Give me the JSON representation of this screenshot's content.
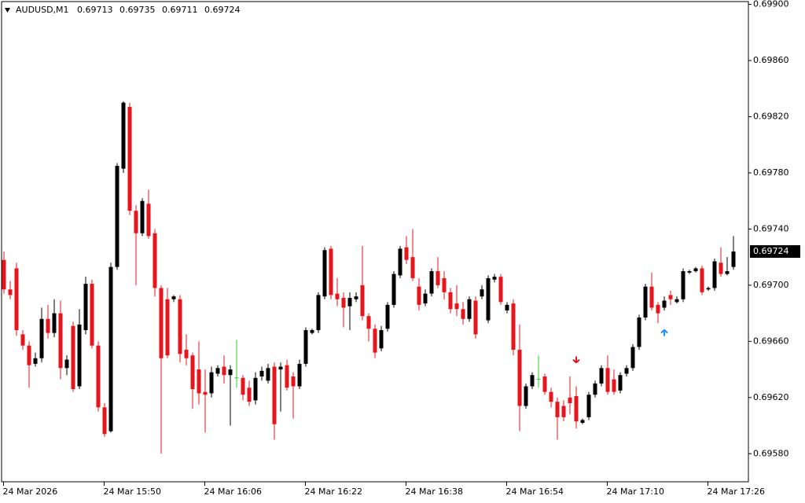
{
  "chart_data": {
    "type": "candlestick",
    "title": "AUDUSD,M1",
    "categories": [
      "24 Mar 2026",
      null,
      null,
      null,
      null,
      null,
      null,
      null,
      null,
      null,
      null,
      null,
      null,
      null,
      null,
      null,
      "24 Mar 15:50",
      null,
      null,
      null,
      null,
      null,
      null,
      null,
      null,
      null,
      null,
      null,
      null,
      null,
      null,
      null,
      "24 Mar 16:06",
      null,
      null,
      null,
      null,
      null,
      null,
      null,
      null,
      null,
      null,
      null,
      null,
      null,
      null,
      null,
      "24 Mar 16:22",
      null,
      null,
      null,
      null,
      null,
      null,
      null,
      null,
      null,
      null,
      null,
      null,
      null,
      null,
      null,
      "24 Mar 16:38",
      null,
      null,
      null,
      null,
      null,
      null,
      null,
      null,
      null,
      null,
      null,
      null,
      null,
      null,
      null,
      "24 Mar 16:54",
      null,
      null,
      null,
      null,
      null,
      null,
      null,
      null,
      null,
      null,
      null,
      null,
      null,
      null,
      null,
      "24 Mar 17:10",
      null,
      null,
      null,
      null,
      null,
      null,
      null,
      null,
      null,
      null,
      null,
      null,
      null,
      null,
      null,
      "24 Mar 17:26",
      null,
      null,
      null,
      null
    ],
    "open": [
      0.69718,
      0.69697,
      0.69712,
      0.69665,
      0.69657,
      0.69644,
      0.69648,
      0.69676,
      0.69666,
      0.6968,
      0.69641,
      0.69671,
      0.69628,
      0.69668,
      0.69701,
      0.69657,
      0.69613,
      0.69596,
      0.69713,
      0.69783,
      0.69827,
      0.69753,
      0.69737,
      0.69758,
      0.69737,
      0.69698,
      0.6969,
      0.6969,
      0.6969,
      0.69654,
      0.6965,
      0.6964,
      0.69624,
      0.69623,
      0.69637,
      0.69642,
      0.69636,
      0.69634,
      0.69634,
      0.69627,
      0.69618,
      0.69635,
      0.69632,
      0.69642,
      0.6964,
      0.69643,
      0.69635,
      0.69628,
      0.69644,
      0.69666,
      0.69668,
      0.69692,
      0.69726,
      0.69694,
      0.69691,
      0.69685,
      0.6969,
      0.697,
      0.69678,
      0.69669,
      0.69655,
      0.69669,
      0.69686,
      0.69707,
      0.69727,
      0.6972,
      0.69699,
      0.69687,
      0.69694,
      0.6971,
      0.69705,
      0.69695,
      0.69687,
      0.69683,
      0.69676,
      0.69689,
      0.69692,
      0.69675,
      0.69704,
      0.69706,
      0.69682,
      0.69687,
      0.69654,
      0.69614,
      0.69628,
      0.69633,
      0.69635,
      0.69624,
      0.69617,
      0.69614,
      0.6962,
      0.69621,
      0.69602,
      0.69606,
      0.69622,
      0.6963,
      0.69641,
      0.69633,
      0.69625,
      0.69637,
      0.69641,
      0.69656,
      0.69677,
      0.69699,
      0.69686,
      0.69684,
      0.69693,
      0.69688,
      0.6969,
      0.69709,
      0.6971,
      0.69712,
      0.69697,
      0.69698,
      0.69716,
      0.69708,
      0.69713
    ],
    "high": [
      0.69724,
      0.69703,
      0.69716,
      0.69668,
      0.6966,
      0.69652,
      0.69684,
      0.69686,
      0.6969,
      0.69689,
      0.6965,
      0.69674,
      0.69683,
      0.69706,
      0.69704,
      0.6966,
      0.69616,
      0.69716,
      0.69787,
      0.69831,
      0.6983,
      0.69757,
      0.69762,
      0.69768,
      0.6974,
      0.697,
      0.69698,
      0.69693,
      0.69693,
      0.69665,
      0.69652,
      0.6966,
      0.6964,
      0.69642,
      0.69643,
      0.6965,
      0.69643,
      0.69661,
      0.69636,
      0.69632,
      0.69638,
      0.69642,
      0.69644,
      0.69645,
      0.69645,
      0.69647,
      0.69638,
      0.69647,
      0.6967,
      0.69669,
      0.69695,
      0.69727,
      0.69728,
      0.69705,
      0.69695,
      0.69695,
      0.69695,
      0.69728,
      0.6968,
      0.69672,
      0.69671,
      0.69688,
      0.6971,
      0.69728,
      0.69735,
      0.6974,
      0.69705,
      0.69697,
      0.69712,
      0.6972,
      0.6971,
      0.69698,
      0.697,
      0.69688,
      0.69692,
      0.69692,
      0.697,
      0.69707,
      0.69708,
      0.69708,
      0.69688,
      0.6969,
      0.69672,
      0.6963,
      0.69638,
      0.6965,
      0.69637,
      0.69627,
      0.6962,
      0.69618,
      0.69635,
      0.69628,
      0.69605,
      0.69624,
      0.69632,
      0.69643,
      0.6965,
      0.6964,
      0.69638,
      0.69643,
      0.69658,
      0.69679,
      0.69701,
      0.69709,
      0.69688,
      0.69692,
      0.69696,
      0.69692,
      0.69712,
      0.69711,
      0.69713,
      0.69714,
      0.69699,
      0.69719,
      0.69727,
      0.6972,
      0.69735
    ],
    "low": [
      0.69694,
      0.6969,
      0.69664,
      0.69654,
      0.69627,
      0.69642,
      0.69645,
      0.69662,
      0.69663,
      0.69633,
      0.69636,
      0.69624,
      0.69626,
      0.69665,
      0.69655,
      0.6961,
      0.69592,
      0.69595,
      0.69711,
      0.6978,
      0.6975,
      0.697,
      0.69735,
      0.69733,
      0.69692,
      0.6958,
      0.69648,
      0.69688,
      0.69645,
      0.69643,
      0.69612,
      0.69615,
      0.69595,
      0.6962,
      0.69635,
      0.6963,
      0.696,
      0.69627,
      0.69618,
      0.69614,
      0.69615,
      0.69632,
      0.6963,
      0.6959,
      0.6961,
      0.69625,
      0.69605,
      0.69626,
      0.69642,
      0.69665,
      0.69666,
      0.6969,
      0.6969,
      0.69685,
      0.6967,
      0.69668,
      0.69688,
      0.69675,
      0.6966,
      0.69648,
      0.69653,
      0.69667,
      0.69684,
      0.69705,
      0.69715,
      0.69703,
      0.69682,
      0.69685,
      0.69692,
      0.69698,
      0.6969,
      0.6968,
      0.69678,
      0.69672,
      0.69674,
      0.69662,
      0.6969,
      0.69673,
      0.69702,
      0.69686,
      0.6968,
      0.6965,
      0.69596,
      0.69612,
      0.69626,
      0.69627,
      0.69622,
      0.69613,
      0.6959,
      0.69603,
      0.69608,
      0.69598,
      0.69601,
      0.69604,
      0.6962,
      0.69628,
      0.69622,
      0.69622,
      0.69623,
      0.69635,
      0.69639,
      0.69654,
      0.69675,
      0.69682,
      0.69673,
      0.69682,
      0.69686,
      0.69687,
      0.69688,
      0.69708,
      0.69709,
      0.69693,
      0.69696,
      0.69696,
      0.69706,
      0.69707,
      0.69711
    ],
    "close": [
      0.69697,
      0.69693,
      0.69668,
      0.69657,
      0.69643,
      0.69648,
      0.69676,
      0.69666,
      0.6968,
      0.69641,
      0.69647,
      0.69626,
      0.69672,
      0.69701,
      0.69657,
      0.69613,
      0.69594,
      0.69713,
      0.69785,
      0.6983,
      0.69753,
      0.69737,
      0.6976,
      0.69735,
      0.69698,
      0.69648,
      0.6965,
      0.69692,
      0.69651,
      0.69648,
      0.69626,
      0.69623,
      0.69622,
      0.69638,
      0.69641,
      0.69636,
      0.6964,
      0.69634,
      0.69622,
      0.69617,
      0.69634,
      0.69639,
      0.69641,
      0.69601,
      0.69642,
      0.69627,
      0.69628,
      0.69644,
      0.69668,
      0.69668,
      0.69693,
      0.69725,
      0.69693,
      0.6969,
      0.69684,
      0.69691,
      0.69692,
      0.69678,
      0.69669,
      0.69652,
      0.69668,
      0.69686,
      0.69708,
      0.69726,
      0.69718,
      0.69705,
      0.69686,
      0.69694,
      0.6971,
      0.697,
      0.69695,
      0.69683,
      0.69683,
      0.69676,
      0.6969,
      0.69665,
      0.69697,
      0.69705,
      0.69706,
      0.69688,
      0.69686,
      0.69654,
      0.69614,
      0.69628,
      0.69636,
      0.69633,
      0.69624,
      0.69617,
      0.69606,
      0.69606,
      0.69616,
      0.69603,
      0.69604,
      0.69622,
      0.6963,
      0.69641,
      0.69624,
      0.69624,
      0.69636,
      0.69641,
      0.69656,
      0.69677,
      0.69699,
      0.69684,
      0.6968,
      0.69689,
      0.6969,
      0.6969,
      0.6971,
      0.6971,
      0.69712,
      0.69695,
      0.69698,
      0.69717,
      0.69708,
      0.6971,
      0.69724
    ],
    "up_color": "#000000",
    "down_color": "#e8141c",
    "doji_color": "#2ecc2e",
    "signals": [
      {
        "index": 91,
        "value": 0.69647,
        "direction": "down",
        "color": "#e8141c"
      },
      {
        "index": 105,
        "value": 0.69666,
        "direction": "up",
        "color": "#1e90ff"
      }
    ],
    "ylim": [
      0.6956,
      0.69902
    ],
    "yticks": [
      {
        "value": 0.6958,
        "label": "0.69580"
      },
      {
        "value": 0.6962,
        "label": "0.69620"
      },
      {
        "value": 0.6966,
        "label": "0.69660"
      },
      {
        "value": 0.697,
        "label": "0.69700"
      },
      {
        "value": 0.6974,
        "label": "0.69740"
      },
      {
        "value": 0.6978,
        "label": "0.69780"
      },
      {
        "value": 0.6982,
        "label": "0.69820"
      },
      {
        "value": 0.6986,
        "label": "0.69860"
      },
      {
        "value": 0.699,
        "label": "0.69900"
      }
    ],
    "grid": false
  }
}
